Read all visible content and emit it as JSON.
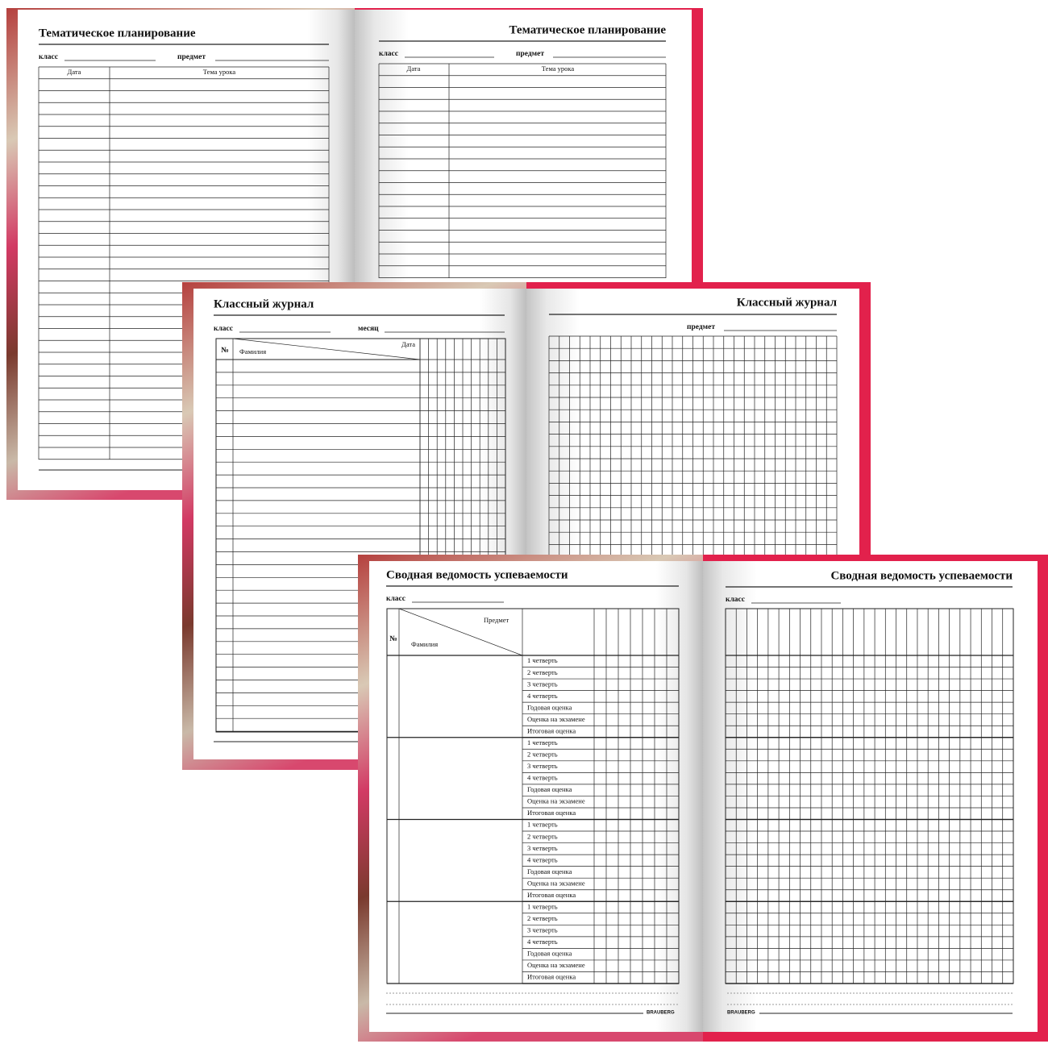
{
  "spreads": [
    {
      "left": {
        "title": "Тематическое планирование",
        "fields": [
          "класс",
          "предмет"
        ],
        "columns": [
          "Дата",
          "Тема урока"
        ]
      },
      "right": {
        "title": "Тематическое планирование",
        "fields": [
          "класс",
          "предмет"
        ],
        "columns": [
          "Дата",
          "Тема урока"
        ]
      }
    },
    {
      "left": {
        "title": "Классный журнал",
        "fields": [
          "класс",
          "месяц"
        ],
        "columns": [
          "№",
          "Фамилия",
          "Дата"
        ]
      },
      "right": {
        "title": "Классный журнал",
        "fields": [
          "предмет"
        ]
      }
    },
    {
      "left": {
        "title": "Сводная ведомость успеваемости",
        "fields": [
          "класс"
        ],
        "columns": [
          "№",
          "Фамилия",
          "Предмет"
        ],
        "row_labels": [
          "1 четверть",
          "2 четверть",
          "3 четверть",
          "4 четверть",
          "Годовая оценка",
          "Оценка на экзамене",
          "Итоговая оценка"
        ]
      },
      "right": {
        "title": "Сводная ведомость успеваемости",
        "fields": [
          "класс"
        ]
      },
      "brand": "BRAUBERG"
    }
  ]
}
